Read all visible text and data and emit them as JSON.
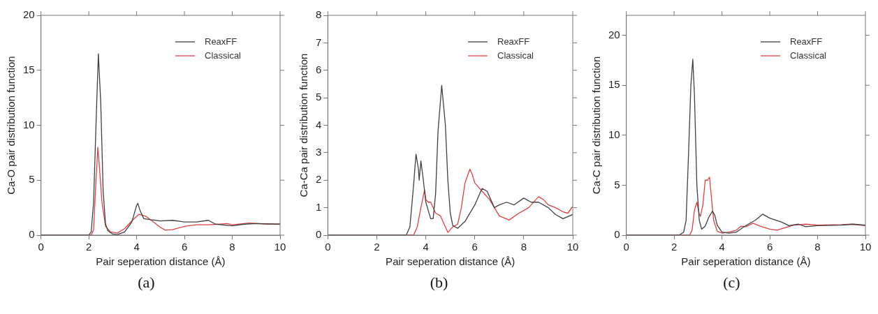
{
  "chart_data": [
    {
      "type": "line",
      "xlabel": "Pair seperation distance (Å)",
      "ylabel": "Ca-O pair distribution function",
      "xlim": [
        0,
        10
      ],
      "xticks": [
        0,
        2,
        4,
        6,
        8,
        10
      ],
      "ylim": [
        0,
        20
      ],
      "yticks": [
        0,
        5,
        10,
        15,
        20
      ],
      "legend": "top right",
      "annotations": [
        "(a)"
      ],
      "series": [
        {
          "name": "ReaxFF",
          "color": "#404040",
          "x": [
            0,
            2.0,
            2.1,
            2.2,
            2.3,
            2.4,
            2.5,
            2.6,
            2.7,
            2.8,
            3.0,
            3.2,
            3.5,
            3.8,
            4.0,
            4.05,
            4.15,
            4.3,
            4.6,
            5,
            5.5,
            6,
            6.5,
            7,
            7.3,
            8,
            8.5,
            9,
            10
          ],
          "values": [
            0,
            0,
            0.3,
            3,
            10,
            16.5,
            12,
            4,
            1,
            0.4,
            0.1,
            0.05,
            0.3,
            1.2,
            2.7,
            2.9,
            2.2,
            1.5,
            1.4,
            1.3,
            1.35,
            1.2,
            1.2,
            1.35,
            1.0,
            0.85,
            1.0,
            1.05,
            1.0
          ]
        },
        {
          "name": "Classical",
          "color": "#e0403f",
          "x": [
            0,
            2.1,
            2.2,
            2.3,
            2.38,
            2.45,
            2.55,
            2.7,
            2.9,
            3.2,
            3.5,
            3.8,
            4.1,
            4.4,
            4.7,
            5.0,
            5.2,
            5.5,
            6,
            6.5,
            7,
            7.8,
            8,
            8.7,
            9.5,
            10
          ],
          "values": [
            0,
            0,
            0.5,
            5,
            8,
            6,
            3,
            0.8,
            0.3,
            0.2,
            0.6,
            1.3,
            1.9,
            1.7,
            1.2,
            0.7,
            0.45,
            0.5,
            0.8,
            0.95,
            0.95,
            1.05,
            0.95,
            1.1,
            1.0,
            1.0
          ]
        }
      ]
    },
    {
      "type": "line",
      "xlabel": "Pair seperation distance (Å)",
      "ylabel": "Ca-Ca pair distribution function",
      "xlim": [
        0,
        10
      ],
      "xticks": [
        0,
        2,
        4,
        6,
        8,
        10
      ],
      "ylim": [
        0,
        8
      ],
      "yticks": [
        0,
        1,
        2,
        3,
        4,
        5,
        6,
        7,
        8
      ],
      "legend": "top right",
      "annotations": [
        "(b)"
      ],
      "series": [
        {
          "name": "ReaxFF",
          "color": "#404040",
          "x": [
            0,
            3.2,
            3.35,
            3.5,
            3.6,
            3.7,
            3.73,
            3.8,
            3.9,
            4.0,
            4.1,
            4.2,
            4.3,
            4.4,
            4.5,
            4.65,
            4.8,
            4.9,
            5.0,
            5.1,
            5.3,
            5.6,
            6.0,
            6.3,
            6.5,
            6.8,
            7.0,
            7.3,
            7.6,
            8.0,
            8.3,
            8.6,
            9.0,
            9.3,
            9.6,
            10
          ],
          "values": [
            0,
            0,
            0.3,
            1.8,
            2.95,
            2.4,
            2.0,
            2.7,
            2.0,
            1.2,
            0.9,
            0.6,
            0.6,
            1.5,
            3.8,
            5.45,
            4.0,
            2.0,
            0.8,
            0.35,
            0.25,
            0.5,
            1.1,
            1.7,
            1.6,
            1.0,
            1.1,
            1.2,
            1.1,
            1.35,
            1.2,
            1.2,
            1.0,
            0.75,
            0.6,
            0.75
          ]
        },
        {
          "name": "Classical",
          "color": "#e0403f",
          "x": [
            0,
            3.5,
            3.65,
            3.8,
            3.95,
            4.0,
            4.1,
            4.2,
            4.4,
            4.6,
            4.8,
            4.9,
            5.1,
            5.3,
            5.45,
            5.6,
            5.8,
            5.9,
            6.0,
            6.3,
            6.6,
            6.8,
            7.0,
            7.4,
            7.8,
            8.2,
            8.6,
            8.8,
            9.0,
            9.3,
            9.6,
            9.8,
            10
          ],
          "values": [
            0,
            0,
            0.3,
            1.0,
            1.65,
            1.3,
            1.2,
            1.2,
            0.8,
            0.7,
            0.3,
            0.1,
            0.3,
            0.4,
            1.0,
            1.9,
            2.4,
            2.2,
            1.9,
            1.6,
            1.3,
            1.0,
            0.7,
            0.55,
            0.8,
            1.0,
            1.4,
            1.3,
            1.1,
            1.0,
            0.85,
            0.8,
            1.05
          ]
        }
      ]
    },
    {
      "type": "line",
      "xlabel": "Pair seperation distance (Å)",
      "ylabel": "Ca-C pair distribution function",
      "xlim": [
        0,
        10
      ],
      "xticks": [
        0,
        2,
        4,
        6,
        8,
        10
      ],
      "ylim": [
        0,
        22
      ],
      "yticks": [
        0,
        5,
        10,
        15,
        20
      ],
      "legend": "top right",
      "annotations": [
        "(c)"
      ],
      "series": [
        {
          "name": "ReaxFF",
          "color": "#404040",
          "x": [
            0,
            2.2,
            2.4,
            2.5,
            2.6,
            2.7,
            2.78,
            2.85,
            2.95,
            3.05,
            3.15,
            3.3,
            3.45,
            3.6,
            3.7,
            3.8,
            4.0,
            4.3,
            4.6,
            4.9,
            5.1,
            5.4,
            5.7,
            6.0,
            6.5,
            6.8,
            7.2,
            7.5,
            8,
            9,
            9.5,
            10
          ],
          "values": [
            0,
            0,
            0.3,
            1.5,
            8,
            15,
            17.6,
            14,
            5,
            1.5,
            0.6,
            0.9,
            1.8,
            2.4,
            2.0,
            1.0,
            0.3,
            0.2,
            0.3,
            0.8,
            1.1,
            1.5,
            2.1,
            1.7,
            1.3,
            0.95,
            1.1,
            0.85,
            0.95,
            1.0,
            1.1,
            1.0
          ]
        },
        {
          "name": "Classical",
          "color": "#e0403f",
          "x": [
            0,
            2.65,
            2.75,
            2.85,
            2.95,
            3.05,
            3.1,
            3.2,
            3.3,
            3.4,
            3.48,
            3.55,
            3.65,
            3.8,
            4.0,
            4.3,
            4.6,
            4.8,
            5.0,
            5.3,
            5.6,
            6.0,
            6.3,
            6.7,
            7.0,
            7.5,
            8,
            9,
            9.4,
            10
          ],
          "values": [
            0,
            0,
            0.5,
            2.5,
            3.3,
            2.1,
            1.9,
            3.0,
            5.5,
            5.5,
            5.8,
            4.0,
            1.5,
            0.4,
            0.2,
            0.3,
            0.5,
            0.9,
            0.85,
            1.2,
            0.9,
            0.6,
            0.5,
            0.8,
            1.0,
            1.1,
            1.0,
            1.05,
            1.1,
            0.95
          ]
        }
      ]
    }
  ]
}
